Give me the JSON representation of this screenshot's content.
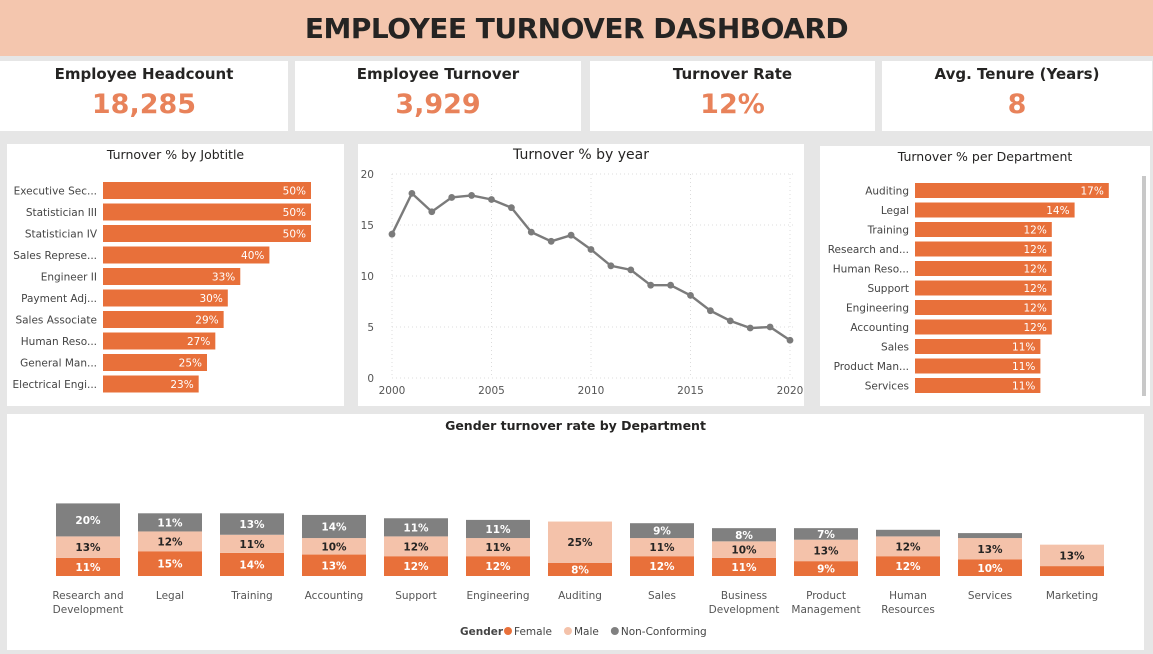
{
  "header": {
    "title": "EMPLOYEE TURNOVER DASHBOARD"
  },
  "kpis": [
    {
      "label": "Employee Headcount",
      "value": "18,285"
    },
    {
      "label": "Employee Turnover",
      "value": "3,929"
    },
    {
      "label": "Turnover Rate",
      "value": "12%"
    },
    {
      "label": "Avg. Tenure (Years)",
      "value": "8"
    }
  ],
  "colors": {
    "female": "#e8703a",
    "male": "#f4c2aa",
    "non_conforming": "#808080",
    "accent": "#e8825a",
    "line": "#7b7b7b"
  },
  "chart_data": [
    {
      "type": "bar",
      "orientation": "horizontal",
      "title": "Turnover % by Jobtitle",
      "categories": [
        "Executive Sec...",
        "Statistician III",
        "Statistician IV",
        "Sales Represe...",
        "Engineer II",
        "Payment Adj...",
        "Sales Associate",
        "Human Reso...",
        "General Man...",
        "Electrical Engi..."
      ],
      "values": [
        50,
        50,
        50,
        40,
        33,
        30,
        29,
        27,
        25,
        23
      ],
      "labels": [
        "50%",
        "50%",
        "50%",
        "40%",
        "33%",
        "30%",
        "29%",
        "27%",
        "25%",
        "23%"
      ]
    },
    {
      "type": "line",
      "title": "Turnover % by year",
      "x": [
        2000,
        2001,
        2002,
        2003,
        2004,
        2005,
        2006,
        2007,
        2008,
        2009,
        2010,
        2011,
        2012,
        2013,
        2014,
        2015,
        2016,
        2017,
        2018,
        2019,
        2020
      ],
      "y": [
        14.1,
        18.1,
        16.3,
        17.7,
        17.9,
        17.5,
        16.7,
        14.3,
        13.4,
        14.0,
        12.6,
        11.0,
        10.6,
        9.1,
        9.1,
        8.1,
        6.6,
        5.6,
        4.9,
        5.0,
        3.7
      ],
      "xticks": [
        2000,
        2005,
        2010,
        2015,
        2020
      ],
      "yticks": [
        0,
        5,
        10,
        15,
        20
      ],
      "ylim": [
        0,
        20
      ],
      "grid": true
    },
    {
      "type": "bar",
      "orientation": "horizontal",
      "title": "Turnover % per Department",
      "categories": [
        "Auditing",
        "Legal",
        "Training",
        "Research and...",
        "Human Reso...",
        "Support",
        "Engineering",
        "Accounting",
        "Sales",
        "Product Man...",
        "Services"
      ],
      "values": [
        17,
        14,
        12,
        12,
        12,
        12,
        12,
        12,
        11,
        11,
        11
      ],
      "labels": [
        "17%",
        "14%",
        "12%",
        "12%",
        "12%",
        "12%",
        "12%",
        "12%",
        "11%",
        "11%",
        "11%"
      ]
    },
    {
      "type": "bar",
      "stacked": true,
      "title": "Gender turnover rate by Department",
      "categories": [
        "Research and Development",
        "Legal",
        "Training",
        "Accounting",
        "Support",
        "Engineering",
        "Auditing",
        "Sales",
        "Business Development",
        "Product Management",
        "Human Resources",
        "Services",
        "Marketing"
      ],
      "category_lines": [
        [
          "Research and",
          "Development"
        ],
        [
          "Legal"
        ],
        [
          "Training"
        ],
        [
          "Accounting"
        ],
        [
          "Support"
        ],
        [
          "Engineering"
        ],
        [
          "Auditing"
        ],
        [
          "Sales"
        ],
        [
          "Business",
          "Development"
        ],
        [
          "Product",
          "Management"
        ],
        [
          "Human",
          "Resources"
        ],
        [
          "Services"
        ],
        [
          "Marketing"
        ]
      ],
      "legend_title": "Gender",
      "legend_position": "bottom",
      "series": [
        {
          "name": "Female",
          "values": [
            11,
            15,
            14,
            13,
            12,
            12,
            8,
            12,
            11,
            9,
            12,
            10,
            6
          ],
          "labels": [
            "11%",
            "15%",
            "14%",
            "13%",
            "12%",
            "12%",
            "8%",
            "12%",
            "11%",
            "9%",
            "12%",
            "10%",
            ""
          ]
        },
        {
          "name": "Male",
          "values": [
            13,
            12,
            11,
            10,
            12,
            11,
            25,
            11,
            10,
            13,
            12,
            13,
            13
          ],
          "labels": [
            "13%",
            "12%",
            "11%",
            "10%",
            "12%",
            "11%",
            "25%",
            "11%",
            "10%",
            "13%",
            "12%",
            "13%",
            "13%"
          ]
        },
        {
          "name": "Non-Conforming",
          "values": [
            20,
            11,
            13,
            14,
            11,
            11,
            0,
            9,
            8,
            7,
            4,
            3,
            0
          ],
          "labels": [
            "20%",
            "11%",
            "13%",
            "14%",
            "11%",
            "11%",
            "",
            "9%",
            "8%",
            "7%",
            "",
            "",
            ""
          ]
        }
      ]
    }
  ]
}
